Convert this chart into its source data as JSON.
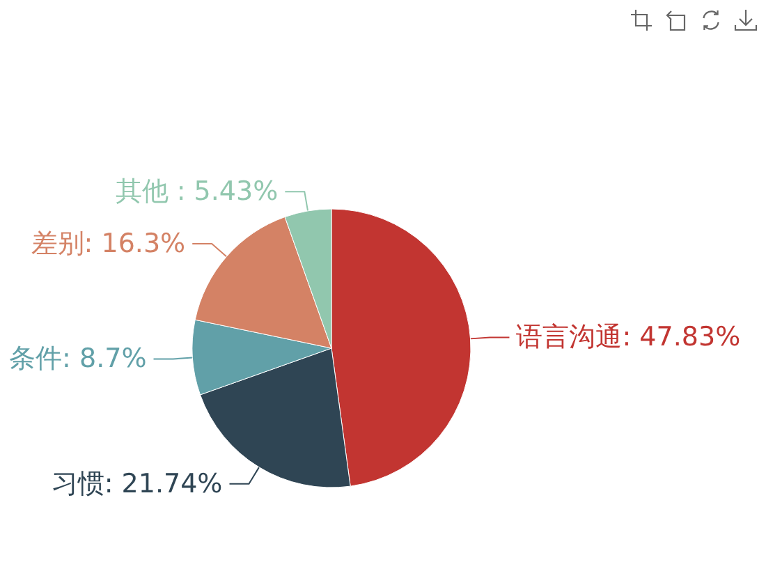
{
  "chart_data": {
    "type": "pie",
    "categories": [
      "语言沟通",
      "习惯",
      "条件",
      "差别",
      "其他 "
    ],
    "values": [
      47.83,
      21.74,
      8.7,
      16.3,
      5.43
    ],
    "colors": [
      "#c23531",
      "#2f4554",
      "#61a0a8",
      "#d48265",
      "#91c7ae"
    ],
    "value_labels": [
      "47.83%",
      "21.74%",
      "8.7%",
      "16.3%",
      "5.43%"
    ]
  }
}
